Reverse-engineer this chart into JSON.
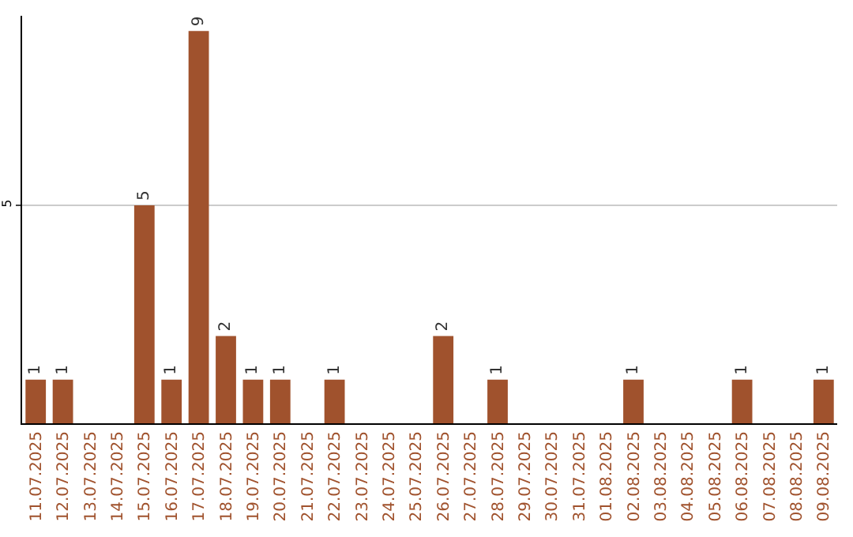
{
  "chart_data": {
    "type": "bar",
    "categories": [
      "11.07.2025",
      "12.07.2025",
      "13.07.2025",
      "14.07.2025",
      "15.07.2025",
      "16.07.2025",
      "17.07.2025",
      "18.07.2025",
      "19.07.2025",
      "20.07.2025",
      "21.07.2025",
      "22.07.2025",
      "23.07.2025",
      "24.07.2025",
      "25.07.2025",
      "26.07.2025",
      "27.07.2025",
      "28.07.2025",
      "29.07.2025",
      "30.07.2025",
      "31.07.2025",
      "01.08.2025",
      "02.08.2025",
      "03.08.2025",
      "04.08.2025",
      "05.08.2025",
      "06.08.2025",
      "07.08.2025",
      "08.08.2025",
      "09.08.2025"
    ],
    "values": [
      1,
      1,
      0,
      0,
      5,
      1,
      9,
      2,
      1,
      1,
      0,
      1,
      0,
      0,
      0,
      2,
      0,
      1,
      0,
      0,
      0,
      0,
      1,
      0,
      0,
      0,
      1,
      0,
      0,
      1
    ],
    "value_labels": [
      "1",
      "1",
      null,
      null,
      "5",
      "1",
      "9",
      "2",
      "1",
      "1",
      null,
      "1",
      null,
      null,
      null,
      "2",
      null,
      "1",
      null,
      null,
      null,
      null,
      "1",
      null,
      null,
      null,
      "1",
      null,
      null,
      "1"
    ],
    "color": "#a0522d",
    "ylim": [
      0,
      9.35
    ],
    "yticks": [
      5
    ],
    "grid": "y"
  }
}
